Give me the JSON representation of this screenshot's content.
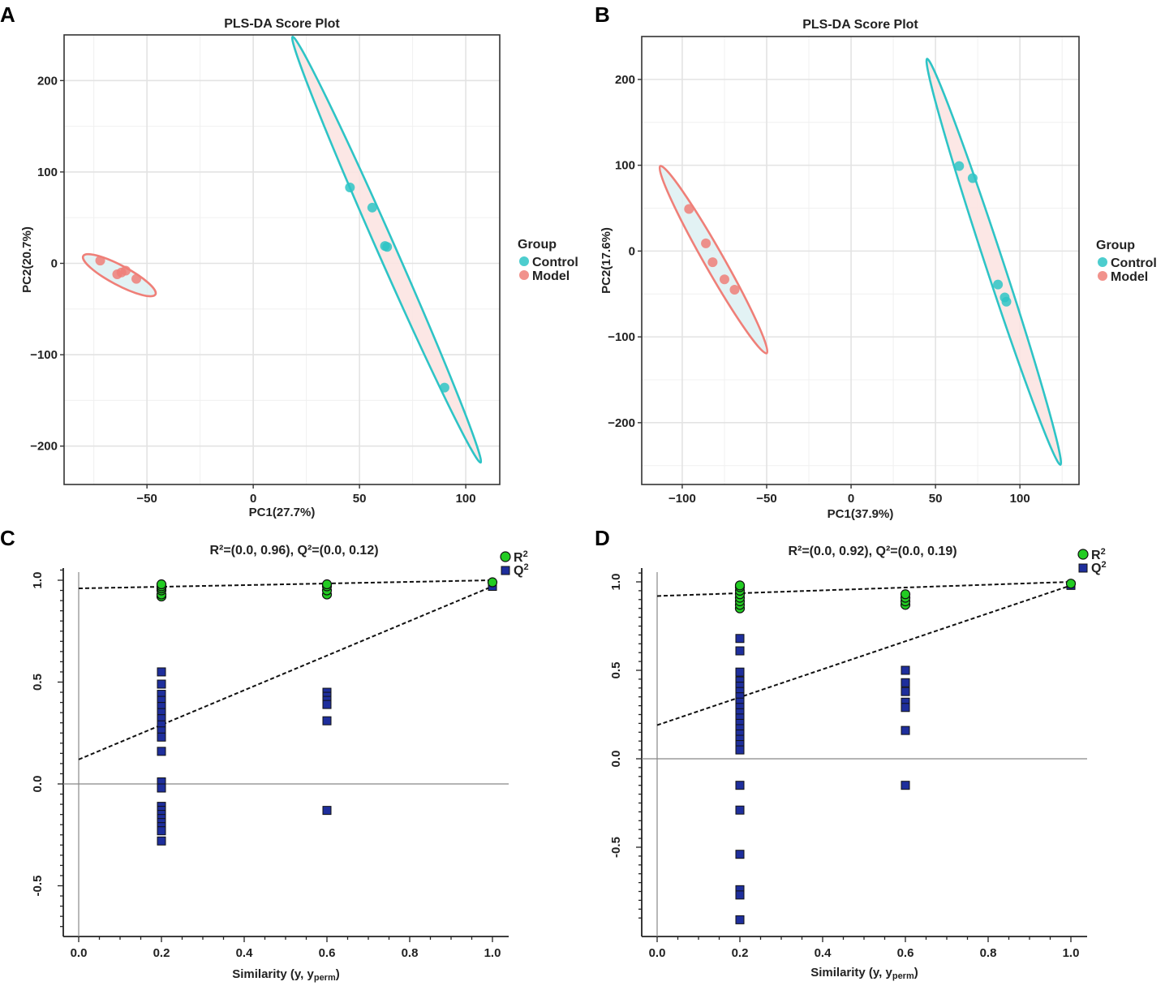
{
  "colors": {
    "control": "#2EC4C6",
    "model": "#EF7F78",
    "control_fill": "#FBE3E1",
    "model_fill": "#DDF0F2",
    "r2": "#22CC22",
    "q2": "#1E2E9C",
    "grid": "#E3E3E3"
  },
  "panels": {
    "A": {
      "letter": "A"
    },
    "B": {
      "letter": "B"
    },
    "C": {
      "letter": "C"
    },
    "D": {
      "letter": "D"
    }
  },
  "chart_data": [
    {
      "id": "A",
      "type": "scatter",
      "title": "PLS-DA Score Plot",
      "xlabel": "PC1(27.7%)",
      "ylabel": "PC2(20.7%)",
      "xlim": [
        -89,
        116
      ],
      "ylim": [
        -242,
        250
      ],
      "xticks": [
        -50,
        0,
        50,
        100
      ],
      "xtick_labels": [
        "−50",
        "0",
        "50",
        "100"
      ],
      "yticks": [
        -200,
        -100,
        0,
        100,
        200
      ],
      "ytick_labels": [
        "−200",
        "−100",
        "0",
        "100",
        "200"
      ],
      "legend": {
        "title": "Group",
        "entries": [
          "Control",
          "Model"
        ],
        "placement": "right"
      },
      "series": [
        {
          "name": "Control",
          "points": [
            [
              45.5,
              83
            ],
            [
              56,
              61
            ],
            [
              62,
              19
            ],
            [
              63,
              18
            ],
            [
              90,
              -136
            ]
          ],
          "ellipse": [
            [
              18.5,
              248
            ],
            [
              107,
              -218
            ]
          ]
        },
        {
          "name": "Model",
          "points": [
            [
              -72,
              3
            ],
            [
              -64,
              -12
            ],
            [
              -62,
              -10
            ],
            [
              -60,
              -8
            ],
            [
              -55,
              -17
            ]
          ],
          "ellipse": [
            [
              -80,
              8
            ],
            [
              -46,
              -34
            ]
          ]
        }
      ]
    },
    {
      "id": "B",
      "type": "scatter",
      "title": "PLS-DA Score Plot",
      "xlabel": "PC1(37.9%)",
      "ylabel": "PC2(17.6%)",
      "xlim": [
        -124,
        135
      ],
      "ylim": [
        -272,
        250
      ],
      "xticks": [
        -100,
        -50,
        0,
        50,
        100
      ],
      "xtick_labels": [
        "−100",
        "−50",
        "0",
        "50",
        "100"
      ],
      "yticks": [
        -200,
        -100,
        0,
        100,
        200
      ],
      "ytick_labels": [
        "−200",
        "−100",
        "0",
        "100",
        "200"
      ],
      "legend": {
        "title": "Group",
        "entries": [
          "Control",
          "Model"
        ],
        "placement": "right"
      },
      "series": [
        {
          "name": "Control",
          "points": [
            [
              64,
              99
            ],
            [
              72,
              85
            ],
            [
              87,
              -39
            ],
            [
              91,
              -54
            ],
            [
              92,
              -59
            ]
          ],
          "ellipse": [
            [
              45,
              224
            ],
            [
              124,
              -249
            ]
          ]
        },
        {
          "name": "Model",
          "points": [
            [
              -96,
              49
            ],
            [
              -86,
              9
            ],
            [
              -82,
              -13
            ],
            [
              -75,
              -33
            ],
            [
              -69,
              -45
            ]
          ],
          "ellipse": [
            [
              -113,
              99
            ],
            [
              -50,
              -119
            ]
          ]
        }
      ]
    },
    {
      "id": "C",
      "type": "scatter",
      "title": "R²=(0.0, 0.96), Q²=(0.0, 0.12)",
      "xlabel": "Similarity (y, y",
      "xlabel_sub": "perm",
      "xlabel_end": ")",
      "ylabel": "",
      "xlim": [
        -0.04,
        1.04
      ],
      "ylim": [
        -0.72,
        1.06
      ],
      "xticks": [
        0.0,
        0.2,
        0.4,
        0.6,
        0.8,
        1.0
      ],
      "xtick_labels": [
        "0.0",
        "0.2",
        "0.4",
        "0.6",
        "0.8",
        "1.0"
      ],
      "yticks": [
        -0.5,
        0.0,
        0.5,
        1.0
      ],
      "ytick_labels": [
        "-0.5",
        "0.0",
        "0.5",
        "1.0"
      ],
      "legend": {
        "entries": [
          "R",
          "Q"
        ],
        "superscript": "2",
        "placement": "top-right"
      },
      "R2": {
        "points": [
          [
            0.2,
            0.92
          ],
          [
            0.2,
            0.93
          ],
          [
            0.2,
            0.95
          ],
          [
            0.2,
            0.96
          ],
          [
            0.2,
            0.97
          ],
          [
            0.2,
            0.98
          ],
          [
            0.6,
            0.93
          ],
          [
            0.6,
            0.95
          ],
          [
            0.6,
            0.97
          ],
          [
            0.6,
            0.98
          ],
          [
            1.0,
            0.99
          ]
        ],
        "fit": [
          [
            0.0,
            0.96
          ],
          [
            1.0,
            1.0
          ]
        ]
      },
      "Q2": {
        "points": [
          [
            0.2,
            0.55
          ],
          [
            0.2,
            0.49
          ],
          [
            0.2,
            0.44
          ],
          [
            0.2,
            0.41
          ],
          [
            0.2,
            0.38
          ],
          [
            0.2,
            0.35
          ],
          [
            0.2,
            0.32
          ],
          [
            0.2,
            0.29
          ],
          [
            0.2,
            0.26
          ],
          [
            0.2,
            0.23
          ],
          [
            0.2,
            0.16
          ],
          [
            0.2,
            0.01
          ],
          [
            0.2,
            -0.02
          ],
          [
            0.2,
            -0.11
          ],
          [
            0.2,
            -0.13
          ],
          [
            0.2,
            -0.15
          ],
          [
            0.2,
            -0.17
          ],
          [
            0.2,
            -0.19
          ],
          [
            0.2,
            -0.21
          ],
          [
            0.2,
            -0.23
          ],
          [
            0.2,
            -0.28
          ],
          [
            0.6,
            0.45
          ],
          [
            0.6,
            0.43
          ],
          [
            0.6,
            0.41
          ],
          [
            0.6,
            0.39
          ],
          [
            0.6,
            0.31
          ],
          [
            0.6,
            -0.13
          ],
          [
            1.0,
            0.97
          ]
        ],
        "fit": [
          [
            0.0,
            0.12
          ],
          [
            1.0,
            0.97
          ]
        ]
      }
    },
    {
      "id": "D",
      "type": "scatter",
      "title": "R²=(0.0, 0.92), Q²=(0.0, 0.19)",
      "xlabel": "Similarity (y, y",
      "xlabel_sub": "perm",
      "xlabel_end": ")",
      "ylabel": "",
      "xlim": [
        -0.03,
        1.04
      ],
      "ylim": [
        -0.98,
        1.08
      ],
      "xticks": [
        0.0,
        0.2,
        0.4,
        0.6,
        0.8,
        1.0
      ],
      "xtick_labels": [
        "0.0",
        "0.2",
        "0.4",
        "0.6",
        "0.8",
        "1.0"
      ],
      "yticks": [
        -0.5,
        0.0,
        0.5,
        1.0
      ],
      "ytick_labels": [
        "-0.5",
        "0.0",
        "0.5",
        "1.0"
      ],
      "legend": {
        "entries": [
          "R",
          "Q"
        ],
        "superscript": "2",
        "placement": "top-right"
      },
      "R2": {
        "points": [
          [
            0.2,
            0.85
          ],
          [
            0.2,
            0.87
          ],
          [
            0.2,
            0.89
          ],
          [
            0.2,
            0.91
          ],
          [
            0.2,
            0.93
          ],
          [
            0.2,
            0.95
          ],
          [
            0.2,
            0.97
          ],
          [
            0.2,
            0.98
          ],
          [
            0.6,
            0.87
          ],
          [
            0.6,
            0.89
          ],
          [
            0.6,
            0.91
          ],
          [
            0.6,
            0.93
          ],
          [
            1.0,
            0.99
          ]
        ],
        "fit": [
          [
            0.0,
            0.92
          ],
          [
            1.0,
            1.0
          ]
        ]
      },
      "Q2": {
        "points": [
          [
            0.2,
            0.68
          ],
          [
            0.2,
            0.61
          ],
          [
            0.2,
            0.49
          ],
          [
            0.2,
            0.44
          ],
          [
            0.2,
            0.41
          ],
          [
            0.2,
            0.38
          ],
          [
            0.2,
            0.35
          ],
          [
            0.2,
            0.32
          ],
          [
            0.2,
            0.29
          ],
          [
            0.2,
            0.26
          ],
          [
            0.2,
            0.23
          ],
          [
            0.2,
            0.2
          ],
          [
            0.2,
            0.17
          ],
          [
            0.2,
            0.14
          ],
          [
            0.2,
            0.11
          ],
          [
            0.2,
            0.08
          ],
          [
            0.2,
            0.05
          ],
          [
            0.2,
            -0.15
          ],
          [
            0.2,
            -0.29
          ],
          [
            0.2,
            -0.54
          ],
          [
            0.2,
            -0.74
          ],
          [
            0.2,
            -0.77
          ],
          [
            0.2,
            -0.91
          ],
          [
            0.6,
            0.5
          ],
          [
            0.6,
            0.43
          ],
          [
            0.6,
            0.38
          ],
          [
            0.6,
            0.32
          ],
          [
            0.6,
            0.29
          ],
          [
            0.6,
            0.16
          ],
          [
            0.6,
            -0.15
          ],
          [
            1.0,
            0.98
          ]
        ],
        "fit": [
          [
            0.0,
            0.19
          ],
          [
            1.0,
            0.98
          ]
        ]
      }
    }
  ]
}
